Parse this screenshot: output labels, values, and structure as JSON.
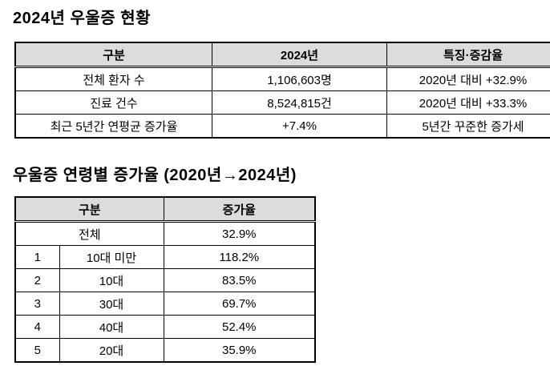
{
  "colors": {
    "header_bg": "#dcdcdc",
    "border": "#000000",
    "text": "#000000",
    "page_bg": "#ffffff"
  },
  "section1": {
    "title": "2024년 우울증 현황",
    "table": {
      "headers": [
        "구분",
        "2024년",
        "특징·증감율"
      ],
      "rows": [
        {
          "category": "전체 환자 수",
          "value": "1,106,603명",
          "note": "2020년 대비 +32.9%"
        },
        {
          "category": "진료 건수",
          "value": "8,524,815건",
          "note": "2020년 대비 +33.3%"
        },
        {
          "category": "최근 5년간 연평균 증가율",
          "value": "+7.4%",
          "note": "5년간 꾸준한 증가세"
        }
      ]
    }
  },
  "section2": {
    "title": "우울증 연령별 증가율 (2020년→2024년)",
    "table": {
      "headers": [
        "구분",
        "증가율"
      ],
      "total_row": {
        "label": "전체",
        "increase": "32.9%"
      },
      "rows": [
        {
          "rank": "1",
          "age_group": "10대 미만",
          "increase": "118.2%"
        },
        {
          "rank": "2",
          "age_group": "10대",
          "increase": "83.5%"
        },
        {
          "rank": "3",
          "age_group": "30대",
          "increase": "69.7%"
        },
        {
          "rank": "4",
          "age_group": "40대",
          "increase": "52.4%"
        },
        {
          "rank": "5",
          "age_group": "20대",
          "increase": "35.9%"
        }
      ]
    }
  }
}
